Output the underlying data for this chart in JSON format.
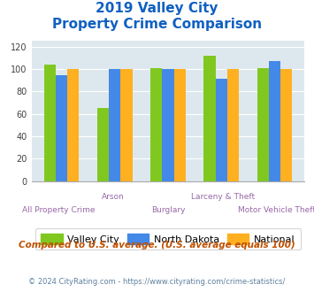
{
  "title_line1": "2019 Valley City",
  "title_line2": "Property Crime Comparison",
  "categories": [
    "All Property Crime",
    "Arson",
    "Burglary",
    "Larceny & Theft",
    "Motor Vehicle Theft"
  ],
  "valley_city": [
    104,
    65,
    101,
    112,
    101
  ],
  "north_dakota": [
    94,
    100,
    100,
    91,
    107
  ],
  "national": [
    100,
    100,
    100,
    100,
    100
  ],
  "bar_colors": {
    "valley_city": "#80c820",
    "north_dakota": "#4488e8",
    "national": "#ffb020"
  },
  "ylim": [
    0,
    125
  ],
  "yticks": [
    0,
    20,
    40,
    60,
    80,
    100,
    120
  ],
  "title_color": "#1060c0",
  "label_color": "#9868a8",
  "subtitle": "Compared to U.S. average. (U.S. average equals 100)",
  "subtitle_color": "#c05000",
  "footer": "© 2024 CityRating.com - https://www.cityrating.com/crime-statistics/",
  "footer_color": "#6080a0",
  "bg_color": "#dde8ee",
  "legend_labels": [
    "Valley City",
    "North Dakota",
    "National"
  ]
}
